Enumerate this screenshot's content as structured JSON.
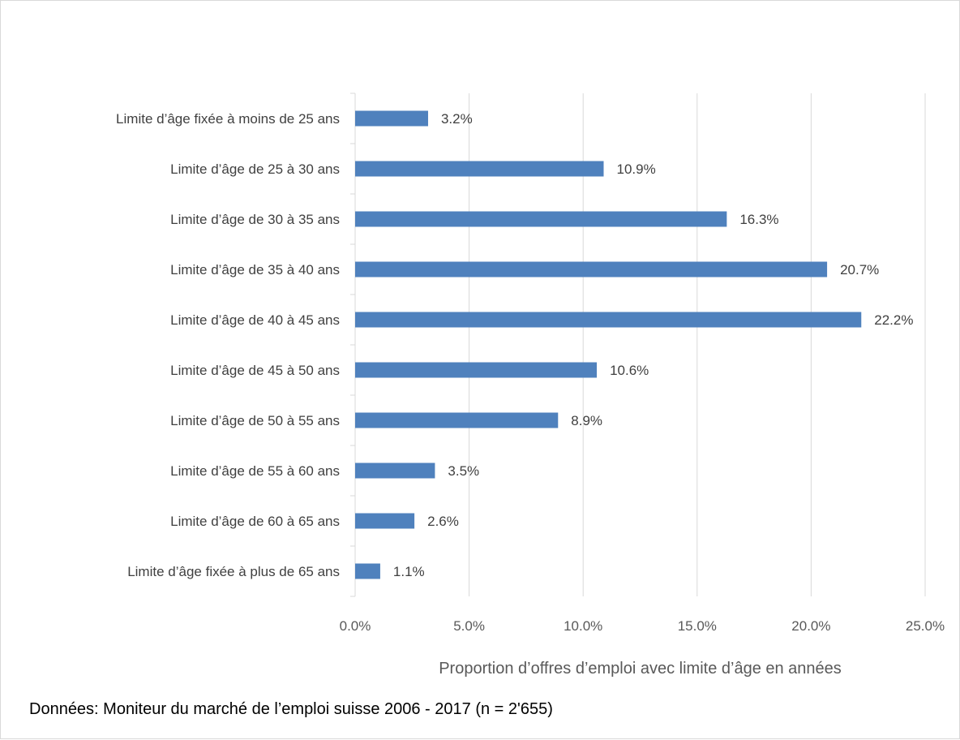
{
  "chart_data": {
    "type": "bar",
    "orientation": "horizontal",
    "categories": [
      "Limite d’âge fixée à moins de 25 ans",
      "Limite d’âge de 25 à 30 ans",
      "Limite d’âge de 30 à 35 ans",
      "Limite d’âge de 35 à 40 ans",
      "Limite d’âge de 40 à 45 ans",
      "Limite d’âge de 45 à 50 ans",
      "Limite d’âge de 50 à 55 ans",
      "Limite d’âge de 55 à 60 ans",
      "Limite d’âge de 60 à 65 ans",
      "Limite d’âge fixée à plus de 65 ans"
    ],
    "values": [
      3.2,
      10.9,
      16.3,
      20.7,
      22.2,
      10.6,
      8.9,
      3.5,
      2.6,
      1.1
    ],
    "data_labels": [
      "3.2%",
      "10.9%",
      "16.3%",
      "20.7%",
      "22.2%",
      "10.6%",
      "8.9%",
      "3.5%",
      "2.6%",
      "1.1%"
    ],
    "xlabel": "Proportion d’offres d’emploi avec limite d’âge en années",
    "ylabel": "",
    "xlim": [
      0,
      25
    ],
    "xticks": [
      0,
      5,
      10,
      15,
      20,
      25
    ],
    "xtick_labels": [
      "0.0%",
      "5.0%",
      "10.0%",
      "15.0%",
      "20.0%",
      "25.0%"
    ],
    "grid": "vertical",
    "legend": "none",
    "bar_color": "#4f81bd"
  },
  "source_note": "Données: Moniteur du marché de l’emploi suisse 2006 - 2017 (n = 2'655)"
}
